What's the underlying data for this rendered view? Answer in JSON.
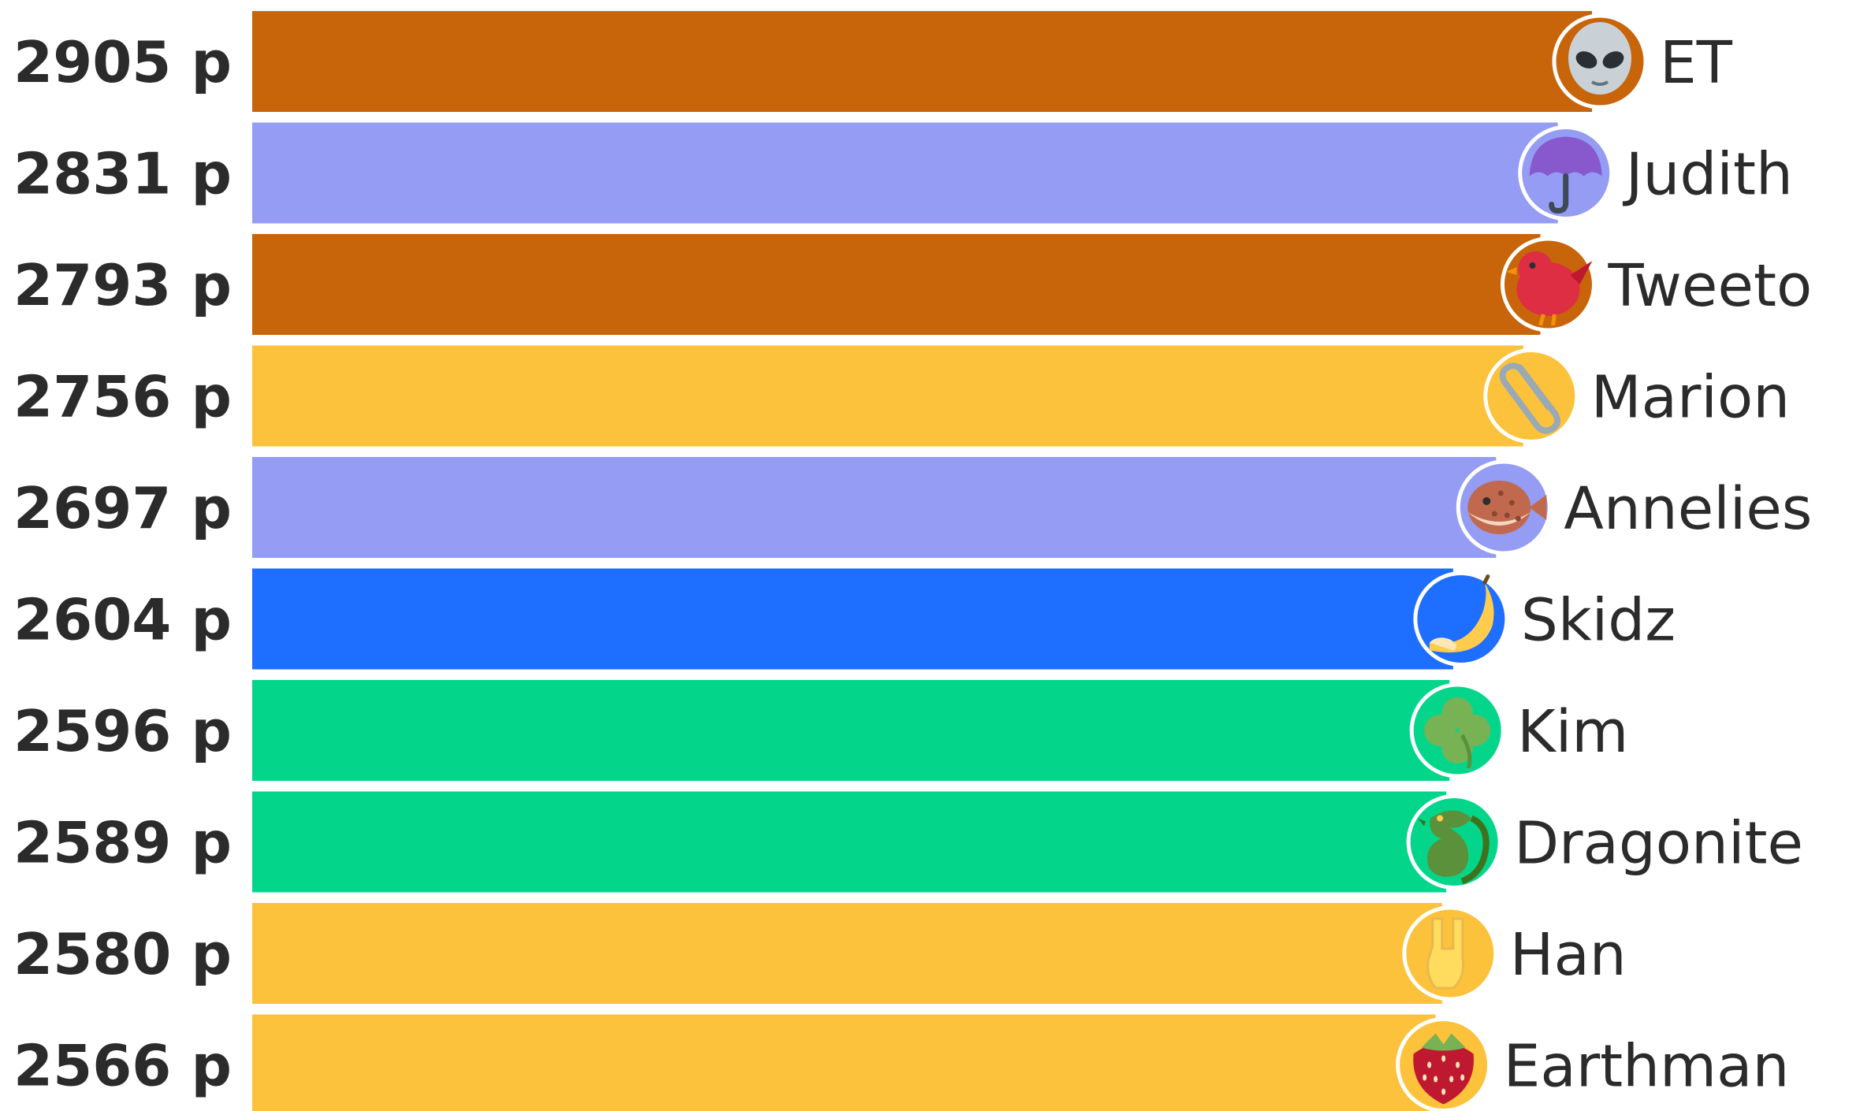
{
  "chart_data": {
    "type": "bar",
    "orientation": "horizontal",
    "value_suffix": " p",
    "xlim": [
      0,
      2905
    ],
    "categories": [
      "ET",
      "Judith",
      "Tweeto",
      "Marion",
      "Annelies",
      "Skidz",
      "Kim",
      "Dragonite",
      "Han",
      "Earthman"
    ],
    "values": [
      2905,
      2831,
      2793,
      2756,
      2697,
      2604,
      2596,
      2589,
      2580,
      2566
    ],
    "colors": [
      "#c8640a",
      "#949cf4",
      "#c8640a",
      "#fcc23c",
      "#949cf4",
      "#1e6eff",
      "#03d68b",
      "#03d68b",
      "#fcc23c",
      "#fcc23c"
    ],
    "icons": [
      "alien-icon",
      "umbrella-icon",
      "bird-icon",
      "paperclip-icon",
      "pufferfish-icon",
      "banana-icon",
      "clover-icon",
      "dragon-icon",
      "rock-hand-icon",
      "strawberry-icon"
    ],
    "score_labels": [
      "2905 p",
      "2831 p",
      "2793 p",
      "2756 p",
      "2697 p",
      "2604 p",
      "2596 p",
      "2589 p",
      "2580 p",
      "2566 p"
    ]
  }
}
